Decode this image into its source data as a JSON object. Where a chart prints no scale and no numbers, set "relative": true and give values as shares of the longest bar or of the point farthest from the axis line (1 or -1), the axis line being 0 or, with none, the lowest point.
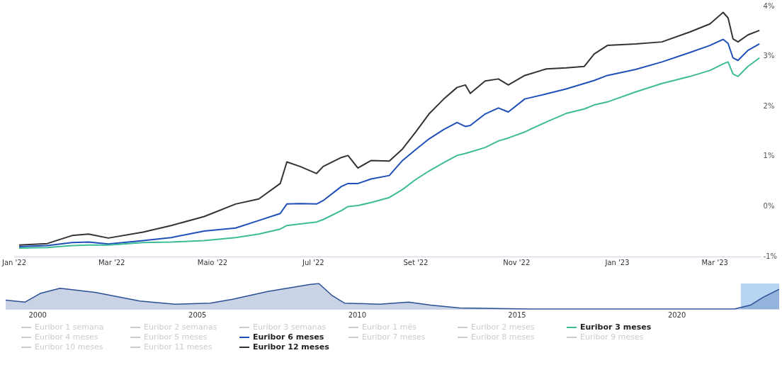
{
  "chart_data": [
    {
      "type": "line",
      "legend": "bottom",
      "marker": "none",
      "line_style": "solid",
      "grid": false,
      "x": [
        "2022-01-04",
        "2022-01-21",
        "2022-02-05",
        "2022-02-15",
        "2022-02-27",
        "2022-03-20",
        "2022-04-06",
        "2022-04-26",
        "2022-05-15",
        "2022-05-29",
        "2022-06-11",
        "2022-06-15",
        "2022-06-23",
        "2022-07-03",
        "2022-07-07",
        "2022-07-18",
        "2022-07-22",
        "2022-07-28",
        "2022-08-05",
        "2022-08-16",
        "2022-08-24",
        "2022-09-01",
        "2022-09-09",
        "2022-09-18",
        "2022-09-26",
        "2022-10-01",
        "2022-10-04",
        "2022-10-13",
        "2022-10-21",
        "2022-10-27",
        "2022-11-06",
        "2022-11-19",
        "2022-12-01",
        "2022-12-12",
        "2022-12-18",
        "2022-12-26",
        "2023-01-12",
        "2023-01-28",
        "2023-02-14",
        "2023-02-26",
        "2023-03-06",
        "2023-03-09",
        "2023-03-12",
        "2023-03-15",
        "2023-03-21",
        "2023-03-28"
      ],
      "xlim": [
        "2022-01-01",
        "2023-03-29"
      ],
      "xticks": [
        {
          "value": "2022-01-01",
          "label": "Jan '22"
        },
        {
          "value": "2022-03-01",
          "label": "Mar '22"
        },
        {
          "value": "2022-05-01",
          "label": "Maio '22"
        },
        {
          "value": "2022-07-01",
          "label": "Jul '22"
        },
        {
          "value": "2022-09-01",
          "label": "Set '22"
        },
        {
          "value": "2022-11-01",
          "label": "Nov '22"
        },
        {
          "value": "2023-01-01",
          "label": "Jan '23"
        },
        {
          "value": "2023-03-01",
          "label": "Mar '23"
        }
      ],
      "ylim": [
        -1,
        4
      ],
      "yticks": [
        {
          "value": -1,
          "label": "-1%"
        },
        {
          "value": 0,
          "label": "0%"
        },
        {
          "value": 1,
          "label": "1%"
        },
        {
          "value": 2,
          "label": "2%"
        },
        {
          "value": 3,
          "label": "3%"
        },
        {
          "value": 4,
          "label": "4%"
        }
      ],
      "series": [
        {
          "name": "Euribor 1 semana",
          "color": "#cccccc",
          "values": [
            null,
            null,
            null,
            null,
            null,
            null,
            null,
            null,
            null,
            null,
            null,
            null,
            null,
            null,
            null,
            null,
            null,
            null,
            null,
            null,
            null,
            null,
            null,
            null,
            null,
            null,
            null,
            null,
            null,
            null,
            null,
            null,
            null,
            null,
            null,
            null,
            null,
            null,
            null,
            null,
            null,
            null,
            null,
            null,
            null,
            null
          ]
        },
        {
          "name": "Euribor 2 semanas",
          "color": "#cccccc",
          "values": [
            null,
            null,
            null,
            null,
            null,
            null,
            null,
            null,
            null,
            null,
            null,
            null,
            null,
            null,
            null,
            null,
            null,
            null,
            null,
            null,
            null,
            null,
            null,
            null,
            null,
            null,
            null,
            null,
            null,
            null,
            null,
            null,
            null,
            null,
            null,
            null,
            null,
            null,
            null,
            null,
            null,
            null,
            null,
            null,
            null,
            null
          ]
        },
        {
          "name": "Euribor 3 semanas",
          "color": "#cccccc",
          "values": [
            null,
            null,
            null,
            null,
            null,
            null,
            null,
            null,
            null,
            null,
            null,
            null,
            null,
            null,
            null,
            null,
            null,
            null,
            null,
            null,
            null,
            null,
            null,
            null,
            null,
            null,
            null,
            null,
            null,
            null,
            null,
            null,
            null,
            null,
            null,
            null,
            null,
            null,
            null,
            null,
            null,
            null,
            null,
            null,
            null,
            null
          ]
        },
        {
          "name": "Euribor 1 mês",
          "color": "#cccccc",
          "values": [
            null,
            null,
            null,
            null,
            null,
            null,
            null,
            null,
            null,
            null,
            null,
            null,
            null,
            null,
            null,
            null,
            null,
            null,
            null,
            null,
            null,
            null,
            null,
            null,
            null,
            null,
            null,
            null,
            null,
            null,
            null,
            null,
            null,
            null,
            null,
            null,
            null,
            null,
            null,
            null,
            null,
            null,
            null,
            null,
            null,
            null
          ]
        },
        {
          "name": "Euribor 2 meses",
          "color": "#cccccc",
          "values": [
            null,
            null,
            null,
            null,
            null,
            null,
            null,
            null,
            null,
            null,
            null,
            null,
            null,
            null,
            null,
            null,
            null,
            null,
            null,
            null,
            null,
            null,
            null,
            null,
            null,
            null,
            null,
            null,
            null,
            null,
            null,
            null,
            null,
            null,
            null,
            null,
            null,
            null,
            null,
            null,
            null,
            null,
            null,
            null,
            null,
            null
          ]
        },
        {
          "name": "Euribor 3 meses",
          "color": "#3dbb98",
          "values": [
            -0.83,
            -0.82,
            -0.78,
            -0.77,
            -0.77,
            -0.72,
            -0.71,
            -0.68,
            -0.62,
            -0.55,
            -0.45,
            -0.38,
            -0.35,
            -0.31,
            -0.26,
            -0.08,
            0,
            0.02,
            0.08,
            0.18,
            0.34,
            0.54,
            0.71,
            0.88,
            1.02,
            1.06,
            1.09,
            1.18,
            1.31,
            1.37,
            1.49,
            1.69,
            1.86,
            1.95,
            2.03,
            2.09,
            2.29,
            2.46,
            2.6,
            2.72,
            2.85,
            2.89,
            2.65,
            2.6,
            2.8,
            2.97
          ]
        },
        {
          "name": "Euribor 4 meses",
          "color": "#cccccc",
          "values": [
            null,
            null,
            null,
            null,
            null,
            null,
            null,
            null,
            null,
            null,
            null,
            null,
            null,
            null,
            null,
            null,
            null,
            null,
            null,
            null,
            null,
            null,
            null,
            null,
            null,
            null,
            null,
            null,
            null,
            null,
            null,
            null,
            null,
            null,
            null,
            null,
            null,
            null,
            null,
            null,
            null,
            null,
            null,
            null,
            null,
            null
          ]
        },
        {
          "name": "Euribor 5 meses",
          "color": "#cccccc",
          "values": [
            null,
            null,
            null,
            null,
            null,
            null,
            null,
            null,
            null,
            null,
            null,
            null,
            null,
            null,
            null,
            null,
            null,
            null,
            null,
            null,
            null,
            null,
            null,
            null,
            null,
            null,
            null,
            null,
            null,
            null,
            null,
            null,
            null,
            null,
            null,
            null,
            null,
            null,
            null,
            null,
            null,
            null,
            null,
            null,
            null,
            null
          ]
        },
        {
          "name": "Euribor 6 meses",
          "color": "#1f4fb8",
          "values": [
            -0.8,
            -0.78,
            -0.72,
            -0.71,
            -0.75,
            -0.68,
            -0.62,
            -0.49,
            -0.43,
            -0.28,
            -0.14,
            0.05,
            0.06,
            0.05,
            0.12,
            0.4,
            0.46,
            0.46,
            0.55,
            0.62,
            0.92,
            1.14,
            1.35,
            1.54,
            1.68,
            1.6,
            1.62,
            1.85,
            1.97,
            1.89,
            2.15,
            2.25,
            2.35,
            2.46,
            2.52,
            2.62,
            2.74,
            2.89,
            3.08,
            3.22,
            3.34,
            3.26,
            2.97,
            2.92,
            3.12,
            3.25
          ]
        },
        {
          "name": "Euribor 7 meses",
          "color": "#cccccc",
          "values": [
            null,
            null,
            null,
            null,
            null,
            null,
            null,
            null,
            null,
            null,
            null,
            null,
            null,
            null,
            null,
            null,
            null,
            null,
            null,
            null,
            null,
            null,
            null,
            null,
            null,
            null,
            null,
            null,
            null,
            null,
            null,
            null,
            null,
            null,
            null,
            null,
            null,
            null,
            null,
            null,
            null,
            null,
            null,
            null,
            null,
            null
          ]
        },
        {
          "name": "Euribor 8 meses",
          "color": "#cccccc",
          "values": [
            null,
            null,
            null,
            null,
            null,
            null,
            null,
            null,
            null,
            null,
            null,
            null,
            null,
            null,
            null,
            null,
            null,
            null,
            null,
            null,
            null,
            null,
            null,
            null,
            null,
            null,
            null,
            null,
            null,
            null,
            null,
            null,
            null,
            null,
            null,
            null,
            null,
            null,
            null,
            null,
            null,
            null,
            null,
            null,
            null,
            null
          ]
        },
        {
          "name": "Euribor 9 meses",
          "color": "#cccccc",
          "values": [
            null,
            null,
            null,
            null,
            null,
            null,
            null,
            null,
            null,
            null,
            null,
            null,
            null,
            null,
            null,
            null,
            null,
            null,
            null,
            null,
            null,
            null,
            null,
            null,
            null,
            null,
            null,
            null,
            null,
            null,
            null,
            null,
            null,
            null,
            null,
            null,
            null,
            null,
            null,
            null,
            null,
            null,
            null,
            null,
            null,
            null
          ]
        },
        {
          "name": "Euribor 10 meses",
          "color": "#cccccc",
          "values": [
            null,
            null,
            null,
            null,
            null,
            null,
            null,
            null,
            null,
            null,
            null,
            null,
            null,
            null,
            null,
            null,
            null,
            null,
            null,
            null,
            null,
            null,
            null,
            null,
            null,
            null,
            null,
            null,
            null,
            null,
            null,
            null,
            null,
            null,
            null,
            null,
            null,
            null,
            null,
            null,
            null,
            null,
            null,
            null,
            null,
            null
          ]
        },
        {
          "name": "Euribor 11 meses",
          "color": "#cccccc",
          "values": [
            null,
            null,
            null,
            null,
            null,
            null,
            null,
            null,
            null,
            null,
            null,
            null,
            null,
            null,
            null,
            null,
            null,
            null,
            null,
            null,
            null,
            null,
            null,
            null,
            null,
            null,
            null,
            null,
            null,
            null,
            null,
            null,
            null,
            null,
            null,
            null,
            null,
            null,
            null,
            null,
            null,
            null,
            null,
            null,
            null,
            null
          ]
        },
        {
          "name": "Euribor 12 meses",
          "color": "#333333",
          "values": [
            -0.77,
            -0.74,
            -0.58,
            -0.55,
            -0.63,
            -0.51,
            -0.38,
            -0.2,
            0.05,
            0.15,
            0.46,
            0.89,
            0.8,
            0.66,
            0.8,
            0.98,
            1.02,
            0.77,
            0.92,
            0.91,
            1.15,
            1.49,
            1.85,
            2.15,
            2.38,
            2.43,
            2.26,
            2.51,
            2.55,
            2.43,
            2.62,
            2.75,
            2.77,
            2.8,
            3.05,
            3.22,
            3.25,
            3.29,
            3.49,
            3.65,
            3.88,
            3.77,
            3.35,
            3.29,
            3.43,
            3.52
          ]
        }
      ]
    },
    {
      "type": "area",
      "relative": true,
      "marker": "none",
      "grid": false,
      "x": [
        1999.0,
        1999.6,
        2000.1,
        2000.7,
        2001.8,
        2003.2,
        2004.3,
        2005.4,
        2006.1,
        2007.2,
        2008.5,
        2008.8,
        2009.2,
        2009.6,
        2010.7,
        2011.6,
        2012.3,
        2013.2,
        2015.4,
        2018.7,
        2021.8,
        2022.3,
        2022.7,
        2023.2
      ],
      "xlim": [
        1999.0,
        2023.2
      ],
      "xticks": [
        2000,
        2005,
        2010,
        2015,
        2020
      ],
      "bands": [
        {
          "axis": "x",
          "from": 2022.0,
          "to": 2023.2,
          "color": "#b7d4f3"
        }
      ],
      "series": [
        {
          "color": "#2a4f96",
          "values": [
            0.35,
            0.27,
            0.62,
            0.81,
            0.65,
            0.31,
            0.19,
            0.23,
            0.38,
            0.69,
            0.96,
            1,
            0.54,
            0.23,
            0.19,
            0.27,
            0.15,
            0.04,
            0,
            0,
            0,
            0.15,
            0.46,
            0.77
          ]
        }
      ]
    }
  ]
}
